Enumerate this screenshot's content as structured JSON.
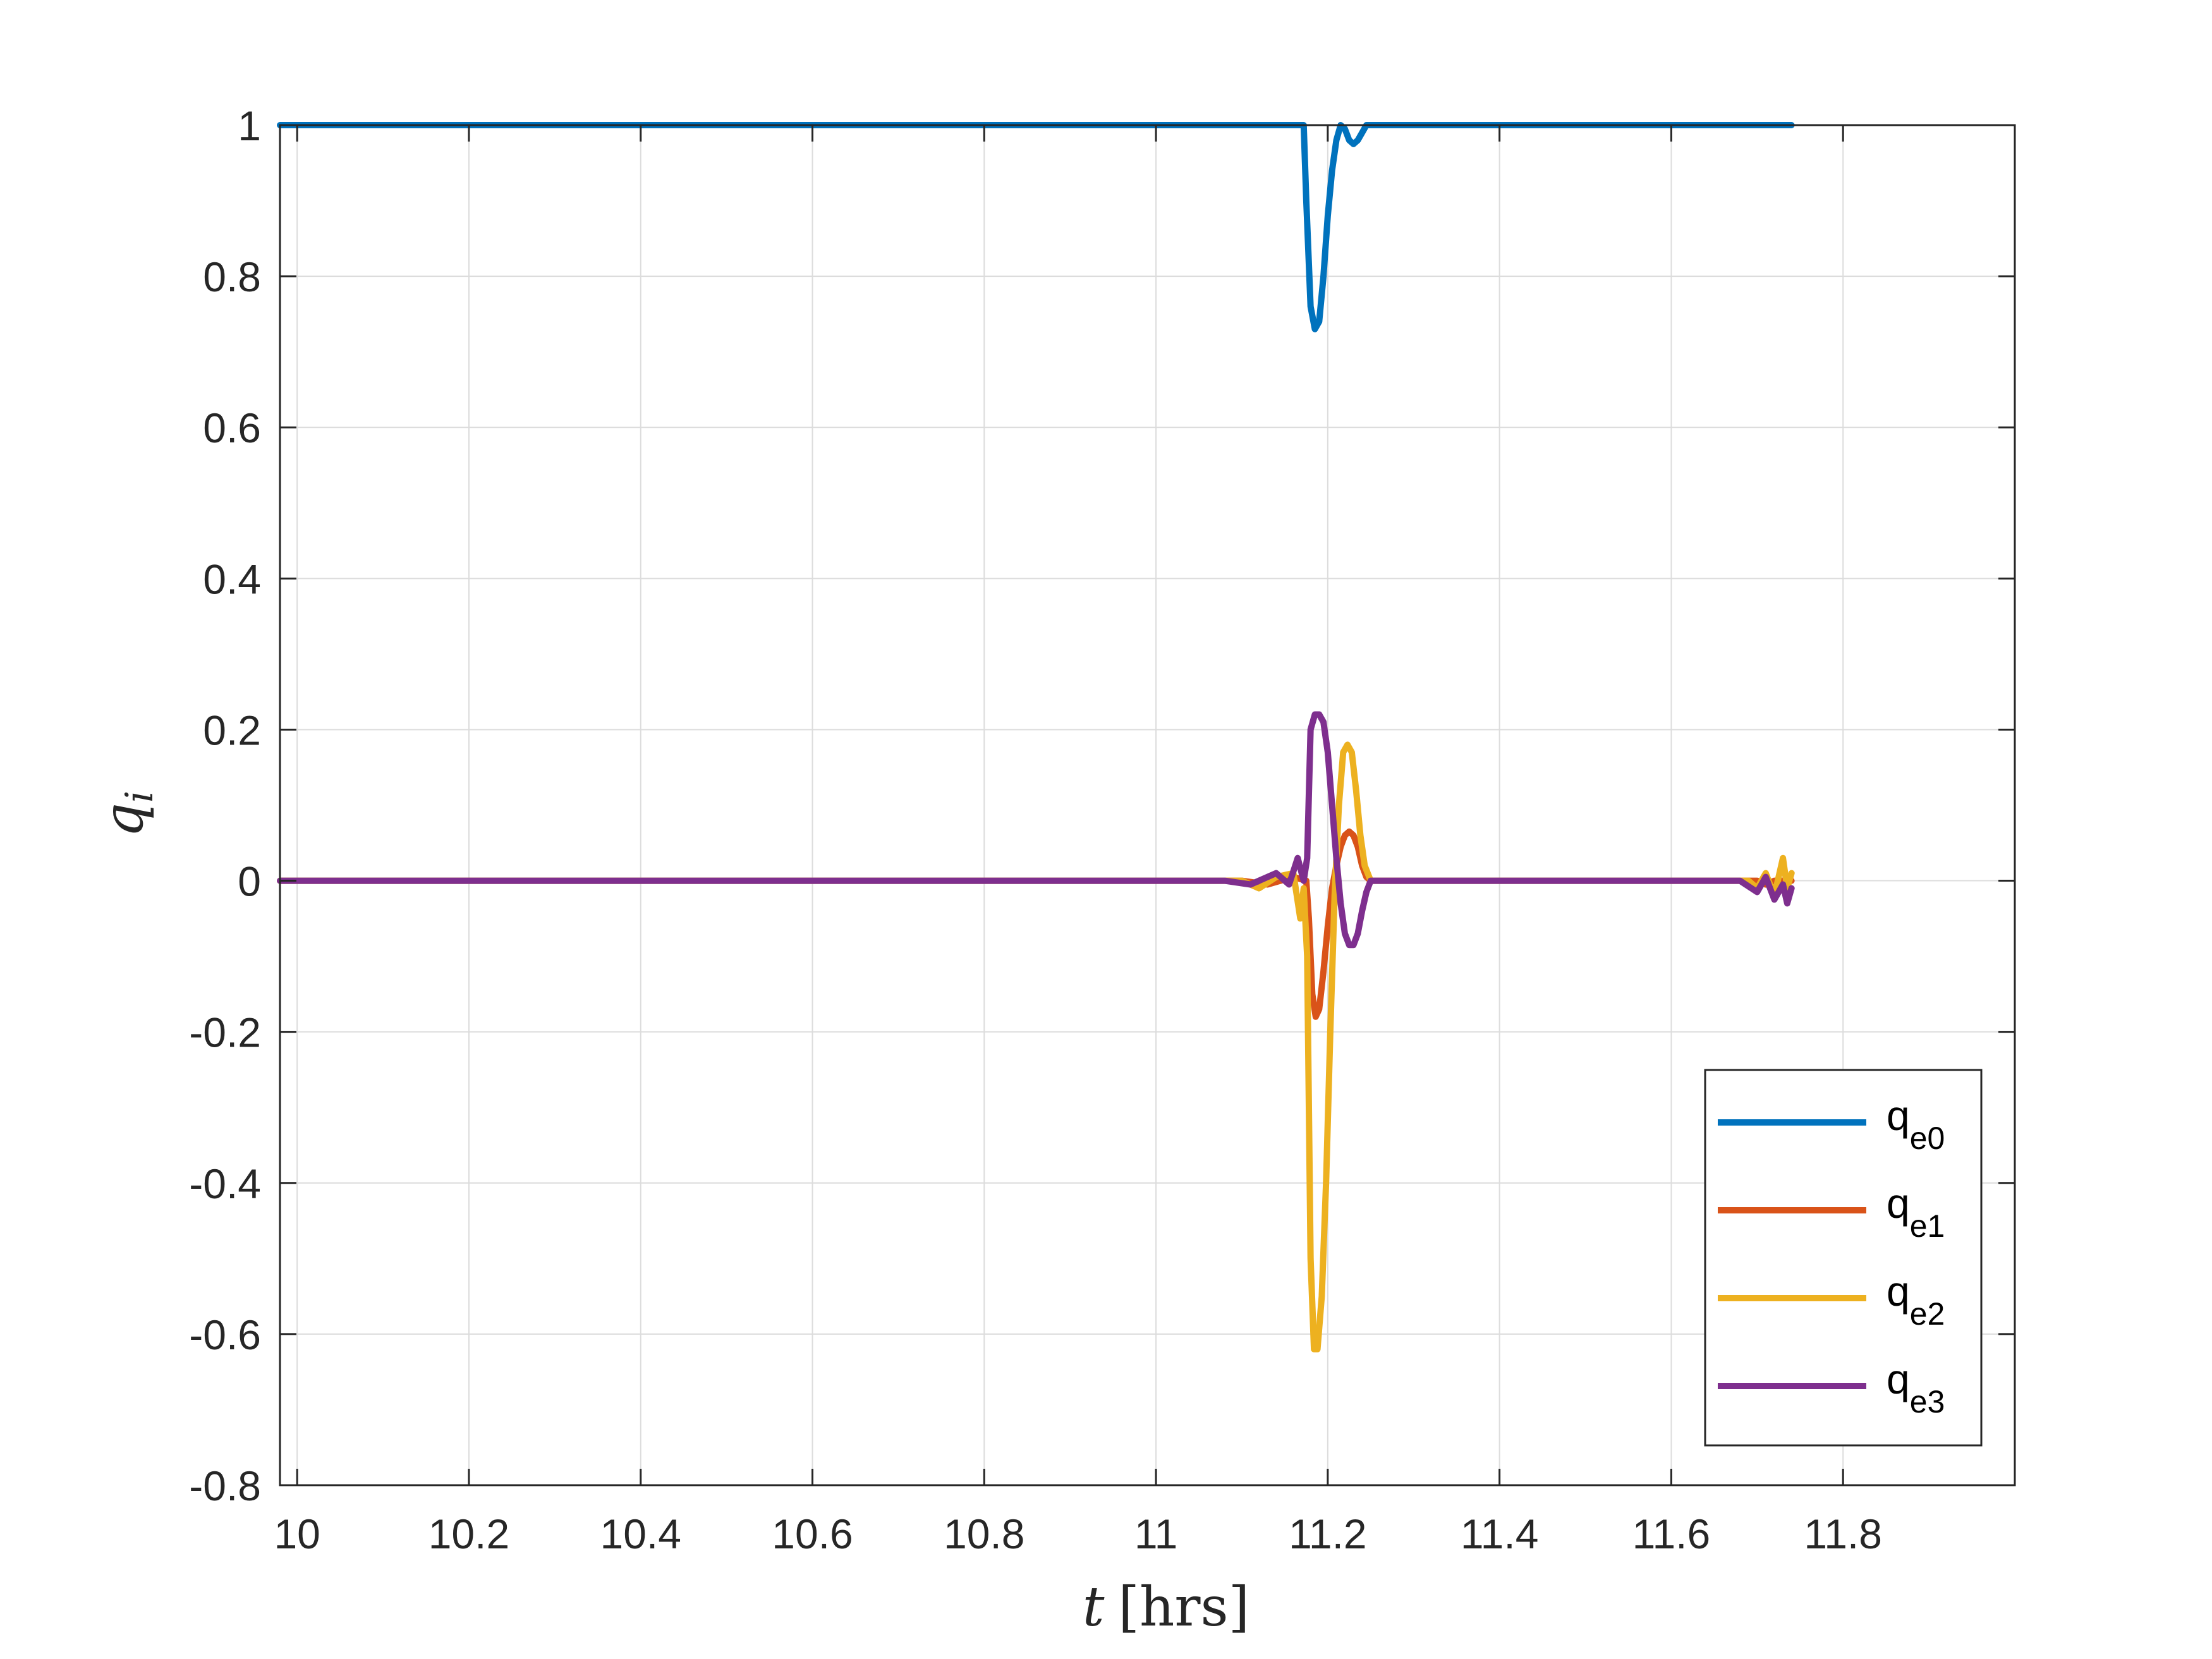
{
  "chart_data": {
    "type": "line",
    "xlabel": {
      "italic": "t",
      "rest": "[hrs]"
    },
    "ylabel": {
      "base": "q",
      "sub": "i"
    },
    "xlim": [
      9.98,
      12.0
    ],
    "ylim": [
      -0.8,
      1.0
    ],
    "grid": true,
    "legend_position": "bottom-right",
    "x_ticks": [
      10,
      10.2,
      10.4,
      10.6,
      10.8,
      11,
      11.2,
      11.4,
      11.6,
      11.8
    ],
    "x_tick_labels": [
      "10",
      "10.2",
      "10.4",
      "10.6",
      "10.8",
      "11",
      "11.2",
      "11.4",
      "11.6",
      "11.8"
    ],
    "y_ticks": [
      1,
      0.8,
      0.6,
      0.4,
      0.2,
      0,
      -0.2,
      -0.4,
      -0.6,
      -0.8
    ],
    "y_tick_labels": [
      "1",
      "0.8",
      "0.6",
      "0.4",
      "0.2",
      "0",
      "-0.2",
      "-0.4",
      "-0.6",
      "-0.8"
    ],
    "series": [
      {
        "name": "q",
        "sub": "e0",
        "color": "#0072BD",
        "points": [
          [
            9.98,
            1.0
          ],
          [
            11.17,
            1.0
          ],
          [
            11.172,
            1.0
          ],
          [
            11.175,
            0.9
          ],
          [
            11.18,
            0.76
          ],
          [
            11.185,
            0.73
          ],
          [
            11.19,
            0.74
          ],
          [
            11.195,
            0.8
          ],
          [
            11.2,
            0.88
          ],
          [
            11.205,
            0.94
          ],
          [
            11.21,
            0.98
          ],
          [
            11.215,
            1.0
          ],
          [
            11.22,
            0.995
          ],
          [
            11.225,
            0.98
          ],
          [
            11.23,
            0.975
          ],
          [
            11.235,
            0.98
          ],
          [
            11.24,
            0.99
          ],
          [
            11.245,
            1.0
          ],
          [
            11.74,
            1.0
          ]
        ]
      },
      {
        "name": "q",
        "sub": "e1",
        "color": "#D95319",
        "points": [
          [
            9.98,
            0.0
          ],
          [
            11.1,
            0.0
          ],
          [
            11.13,
            -0.005
          ],
          [
            11.16,
            0.005
          ],
          [
            11.175,
            0.0
          ],
          [
            11.178,
            -0.05
          ],
          [
            11.182,
            -0.15
          ],
          [
            11.186,
            -0.18
          ],
          [
            11.19,
            -0.17
          ],
          [
            11.195,
            -0.12
          ],
          [
            11.2,
            -0.06
          ],
          [
            11.205,
            -0.01
          ],
          [
            11.21,
            0.02
          ],
          [
            11.215,
            0.045
          ],
          [
            11.22,
            0.06
          ],
          [
            11.225,
            0.065
          ],
          [
            11.23,
            0.06
          ],
          [
            11.235,
            0.045
          ],
          [
            11.24,
            0.02
          ],
          [
            11.245,
            0.005
          ],
          [
            11.25,
            0.0
          ],
          [
            11.7,
            0.0
          ],
          [
            11.71,
            -0.005
          ],
          [
            11.72,
            0.0
          ],
          [
            11.74,
            0.0
          ]
        ]
      },
      {
        "name": "q",
        "sub": "e2",
        "color": "#EDB120",
        "points": [
          [
            9.98,
            0.0
          ],
          [
            11.1,
            0.0
          ],
          [
            11.12,
            -0.01
          ],
          [
            11.14,
            0.005
          ],
          [
            11.16,
            0.01
          ],
          [
            11.168,
            -0.05
          ],
          [
            11.172,
            -0.01
          ],
          [
            11.176,
            -0.1
          ],
          [
            11.18,
            -0.5
          ],
          [
            11.184,
            -0.62
          ],
          [
            11.188,
            -0.62
          ],
          [
            11.193,
            -0.55
          ],
          [
            11.198,
            -0.4
          ],
          [
            11.203,
            -0.2
          ],
          [
            11.208,
            -0.02
          ],
          [
            11.213,
            0.1
          ],
          [
            11.218,
            0.17
          ],
          [
            11.223,
            0.18
          ],
          [
            11.228,
            0.17
          ],
          [
            11.233,
            0.12
          ],
          [
            11.238,
            0.06
          ],
          [
            11.243,
            0.02
          ],
          [
            11.25,
            0.0
          ],
          [
            11.69,
            0.0
          ],
          [
            11.7,
            -0.01
          ],
          [
            11.71,
            0.01
          ],
          [
            11.72,
            -0.02
          ],
          [
            11.73,
            0.03
          ],
          [
            11.735,
            -0.01
          ],
          [
            11.74,
            0.01
          ]
        ]
      },
      {
        "name": "q",
        "sub": "e3",
        "color": "#7E2F8E",
        "points": [
          [
            9.98,
            0.0
          ],
          [
            11.08,
            0.0
          ],
          [
            11.11,
            -0.005
          ],
          [
            11.14,
            0.01
          ],
          [
            11.155,
            -0.005
          ],
          [
            11.165,
            0.03
          ],
          [
            11.172,
            0.0
          ],
          [
            11.176,
            0.03
          ],
          [
            11.18,
            0.2
          ],
          [
            11.185,
            0.22
          ],
          [
            11.19,
            0.22
          ],
          [
            11.195,
            0.21
          ],
          [
            11.2,
            0.17
          ],
          [
            11.205,
            0.1
          ],
          [
            11.21,
            0.03
          ],
          [
            11.215,
            -0.03
          ],
          [
            11.22,
            -0.07
          ],
          [
            11.225,
            -0.085
          ],
          [
            11.23,
            -0.085
          ],
          [
            11.235,
            -0.07
          ],
          [
            11.24,
            -0.04
          ],
          [
            11.245,
            -0.015
          ],
          [
            11.25,
            0.0
          ],
          [
            11.68,
            0.0
          ],
          [
            11.7,
            -0.015
          ],
          [
            11.71,
            0.005
          ],
          [
            11.72,
            -0.025
          ],
          [
            11.73,
            -0.005
          ],
          [
            11.735,
            -0.03
          ],
          [
            11.74,
            -0.01
          ]
        ]
      }
    ]
  }
}
